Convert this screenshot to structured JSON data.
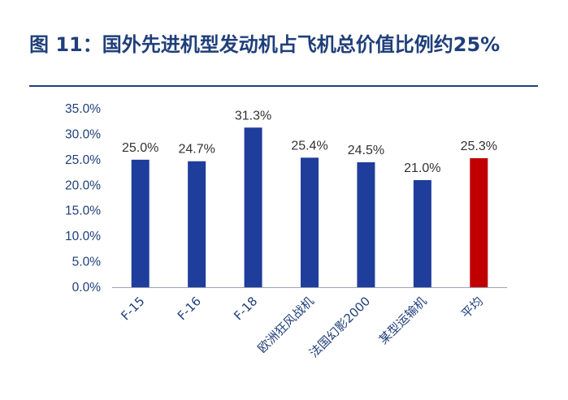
{
  "title": "图 11：国外先进机型发动机占飞机总价值比例约25%",
  "colors": {
    "title": "#1f3f7a",
    "bar": "#1f3d9a",
    "bar_highlight": "#c00000",
    "axis": "#1f3f7a"
  },
  "chart_data": {
    "type": "bar",
    "title": "图 11：国外先进机型发动机占飞机总价值比例约25%",
    "categories": [
      "F-15",
      "F-16",
      "F-18",
      "欧洲狂风战机",
      "法国幻影2000",
      "某型运输机",
      "平均"
    ],
    "values": [
      25.0,
      24.7,
      31.3,
      25.4,
      24.5,
      21.0,
      25.3
    ],
    "data_labels": [
      "25.0%",
      "24.7%",
      "31.3%",
      "25.4%",
      "24.5%",
      "21.0%",
      "25.3%"
    ],
    "highlight_index": 6,
    "y_ticks": [
      "0.0%",
      "5.0%",
      "10.0%",
      "15.0%",
      "20.0%",
      "25.0%",
      "30.0%",
      "35.0%"
    ],
    "ylim": [
      0,
      35
    ],
    "xlabel": "",
    "ylabel": "",
    "grid": false,
    "legend": "none"
  }
}
